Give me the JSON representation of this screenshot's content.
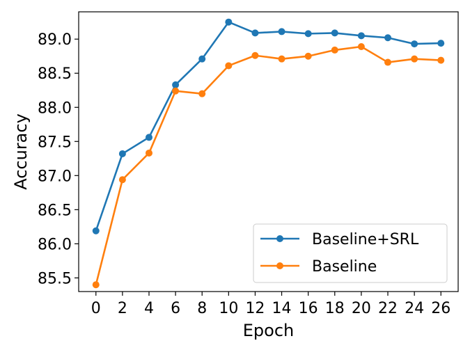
{
  "chart_data": {
    "type": "line",
    "title": "",
    "xlabel": "Epoch",
    "ylabel": "Accuracy",
    "x": [
      0,
      2,
      4,
      6,
      8,
      10,
      12,
      14,
      16,
      18,
      20,
      22,
      24,
      26
    ],
    "xticks": [
      "0",
      "2",
      "4",
      "6",
      "8",
      "10",
      "12",
      "14",
      "16",
      "18",
      "20",
      "22",
      "24",
      "26"
    ],
    "yticks": [
      "85.5",
      "86.0",
      "86.5",
      "87.0",
      "87.5",
      "88.0",
      "88.5",
      "89.0"
    ],
    "ytick_values": [
      85.5,
      86.0,
      86.5,
      87.0,
      87.5,
      88.0,
      88.5,
      89.0
    ],
    "xlim": [
      -1.3,
      27.3
    ],
    "ylim": [
      85.3,
      89.4
    ],
    "grid": false,
    "legend_position": "lower-right",
    "series": [
      {
        "name": "Baseline+SRL",
        "color": "#1f77b4",
        "values": [
          86.19,
          87.32,
          87.56,
          88.33,
          88.71,
          89.25,
          89.09,
          89.11,
          89.08,
          89.09,
          89.05,
          89.02,
          88.93,
          88.94
        ]
      },
      {
        "name": "Baseline",
        "color": "#ff7f0e",
        "values": [
          85.4,
          86.94,
          87.33,
          88.24,
          88.2,
          88.61,
          88.76,
          88.71,
          88.75,
          88.84,
          88.89,
          88.66,
          88.71,
          88.69
        ]
      }
    ]
  }
}
